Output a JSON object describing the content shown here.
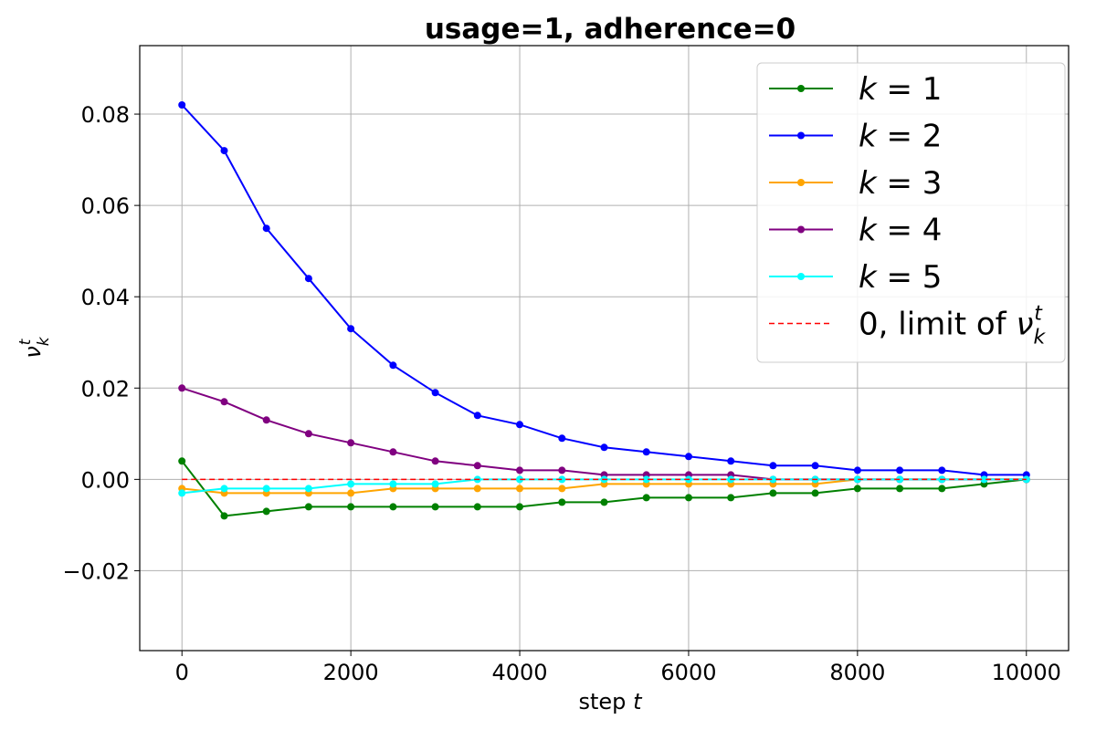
{
  "chart_data": {
    "type": "line",
    "title": "usage=1, adherence=0",
    "xlabel": "step t",
    "xlabel_text": "step",
    "xlabel_var": "t",
    "ylabel": "ν_k^t",
    "xlim": [
      -500,
      10500
    ],
    "ylim": [
      -0.0375,
      0.095
    ],
    "xticks": [
      0,
      2000,
      4000,
      6000,
      8000,
      10000
    ],
    "xtick_labels": [
      "0",
      "2000",
      "4000",
      "6000",
      "8000",
      "10000"
    ],
    "yticks": [
      -0.02,
      0.0,
      0.02,
      0.04,
      0.06,
      0.08
    ],
    "ytick_labels": [
      "−0.02",
      "0.00",
      "0.02",
      "0.04",
      "0.06",
      "0.08"
    ],
    "grid": true,
    "legend_position": "top-right",
    "x": [
      0,
      500,
      1000,
      1500,
      2000,
      2500,
      3000,
      3500,
      4000,
      4500,
      5000,
      5500,
      6000,
      6500,
      7000,
      7500,
      8000,
      8500,
      9000,
      9500,
      10000
    ],
    "series": [
      {
        "name": "k = 1",
        "color": "#008000",
        "values": [
          0.004,
          -0.008,
          -0.007,
          -0.006,
          -0.006,
          -0.006,
          -0.006,
          -0.006,
          -0.006,
          -0.005,
          -0.005,
          -0.004,
          -0.004,
          -0.004,
          -0.003,
          -0.003,
          -0.002,
          -0.002,
          -0.002,
          -0.001,
          0.0
        ]
      },
      {
        "name": "k = 2",
        "color": "#0000ff",
        "values": [
          0.082,
          0.072,
          0.055,
          0.044,
          0.033,
          0.025,
          0.019,
          0.014,
          0.012,
          0.009,
          0.007,
          0.006,
          0.005,
          0.004,
          0.003,
          0.003,
          0.002,
          0.002,
          0.002,
          0.001,
          0.001
        ]
      },
      {
        "name": "k = 3",
        "color": "#ffa500",
        "values": [
          -0.002,
          -0.003,
          -0.003,
          -0.003,
          -0.003,
          -0.002,
          -0.002,
          -0.002,
          -0.002,
          -0.002,
          -0.001,
          -0.001,
          -0.001,
          -0.001,
          -0.001,
          -0.001,
          0.0,
          0.0,
          0.0,
          0.0,
          0.0
        ]
      },
      {
        "name": "k = 4",
        "color": "#800080",
        "values": [
          0.02,
          0.017,
          0.013,
          0.01,
          0.008,
          0.006,
          0.004,
          0.003,
          0.002,
          0.002,
          0.001,
          0.001,
          0.001,
          0.001,
          0.0,
          0.0,
          0.0,
          0.0,
          0.0,
          0.0,
          0.0
        ]
      },
      {
        "name": "k = 5",
        "color": "#00ffff",
        "values": [
          -0.003,
          -0.002,
          -0.002,
          -0.002,
          -0.001,
          -0.001,
          -0.001,
          0.0,
          0.0,
          0.0,
          0.0,
          0.0,
          0.0,
          0.0,
          0.0,
          0.0,
          0.0,
          0.0,
          0.0,
          0.0,
          0.0
        ]
      },
      {
        "name": "0, limit of ν_k^t",
        "color": "#ff0000",
        "dashed": true,
        "values": [
          0,
          0,
          0,
          0,
          0,
          0,
          0,
          0,
          0,
          0,
          0,
          0,
          0,
          0,
          0,
          0,
          0,
          0,
          0,
          0,
          0
        ]
      }
    ]
  },
  "legend": {
    "items": [
      {
        "prefix": "",
        "var": "k",
        "suffix": " = 1"
      },
      {
        "prefix": "",
        "var": "k",
        "suffix": " = 2"
      },
      {
        "prefix": "",
        "var": "k",
        "suffix": " = 3"
      },
      {
        "prefix": "",
        "var": "k",
        "suffix": " = 4"
      },
      {
        "prefix": "",
        "var": "k",
        "suffix": " = 5"
      },
      {
        "prefix": "0, limit of ",
        "var": "ν",
        "suffix": ""
      }
    ]
  }
}
